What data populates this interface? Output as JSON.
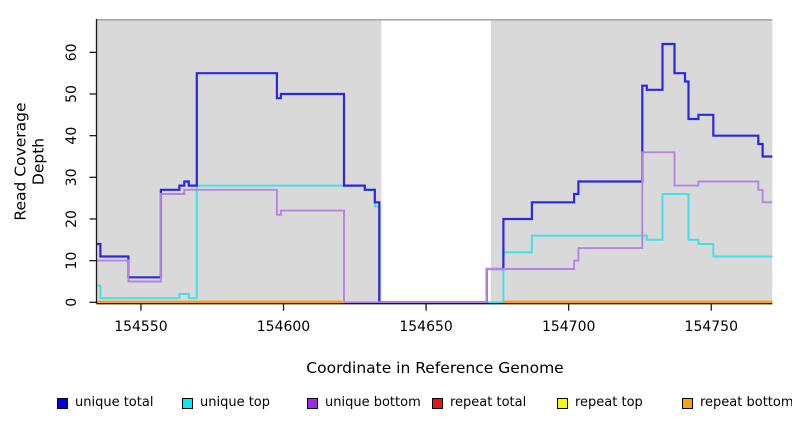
{
  "chart_data": {
    "type": "line",
    "subtype": "step-coverage-plot",
    "title": "",
    "xlabel": "Coordinate in Reference Genome",
    "ylabel": "Read Coverage Depth",
    "xlim": [
      154534.6,
      154771.4
    ],
    "ylim": [
      0,
      68
    ],
    "x_ticks": [
      154550,
      154600,
      154650,
      154700,
      154750
    ],
    "y_ticks": [
      0,
      10,
      20,
      30,
      40,
      50,
      60
    ],
    "grid": false,
    "legend_position": "bottom",
    "plot_bg_color": "#d9d9d9",
    "masked_region": {
      "from": 154634.3,
      "to": 154672.7,
      "color": "#ffffff"
    },
    "series": [
      {
        "name": "unique total",
        "color": "#2b28e0",
        "legend_color": "#0202dd",
        "steps": [
          [
            154534.6,
            14
          ],
          [
            154535.8,
            11
          ],
          [
            154545.6,
            6
          ],
          [
            154557,
            27
          ],
          [
            154563.5,
            28
          ],
          [
            154565.2,
            29
          ],
          [
            154566.8,
            28
          ],
          [
            154569.6,
            55
          ],
          [
            154597.7,
            49
          ],
          [
            154599.1,
            50
          ],
          [
            154621.2,
            28
          ],
          [
            154628.5,
            27
          ],
          [
            154632,
            24
          ],
          [
            154633.6,
            0
          ],
          [
            154671.3,
            8
          ],
          [
            154677.1,
            20
          ],
          [
            154687.1,
            24
          ],
          [
            154701.9,
            26
          ],
          [
            154703.4,
            29
          ],
          [
            154725.8,
            52
          ],
          [
            154727.4,
            51
          ],
          [
            154732.9,
            62
          ],
          [
            154737.1,
            55
          ],
          [
            154740.8,
            53
          ],
          [
            154742,
            44
          ],
          [
            154745.5,
            45
          ],
          [
            154750.7,
            40
          ],
          [
            154766.5,
            38
          ],
          [
            154768,
            35
          ]
        ]
      },
      {
        "name": "unique top",
        "color": "#45dfe8",
        "legend_color": "#00eef2",
        "steps": [
          [
            154534.6,
            4
          ],
          [
            154535.8,
            1
          ],
          [
            154563.5,
            2
          ],
          [
            154566.8,
            1
          ],
          [
            154569.6,
            28
          ],
          [
            154628.5,
            27
          ],
          [
            154632,
            23
          ],
          [
            154633.6,
            0
          ],
          [
            154677.1,
            12
          ],
          [
            154687.1,
            16
          ],
          [
            154727.4,
            15
          ],
          [
            154732.9,
            26
          ],
          [
            154742,
            15
          ],
          [
            154745.5,
            14
          ],
          [
            154750.7,
            11
          ]
        ]
      },
      {
        "name": "unique bottom",
        "color": "#b583e3",
        "legend_color": "#9d2be0",
        "steps": [
          [
            154534.6,
            10
          ],
          [
            154545.6,
            5
          ],
          [
            154557,
            26
          ],
          [
            154565.2,
            27
          ],
          [
            154597.7,
            21
          ],
          [
            154599.1,
            22
          ],
          [
            154621.2,
            0
          ],
          [
            154671.3,
            8
          ],
          [
            154701.9,
            10
          ],
          [
            154703.4,
            13
          ],
          [
            154725.8,
            36
          ],
          [
            154737.1,
            28
          ],
          [
            154745.5,
            29
          ],
          [
            154766.5,
            27
          ],
          [
            154768,
            24
          ]
        ]
      },
      {
        "name": "repeat total",
        "color": "#e04040",
        "legend_color": "#ee1111",
        "value": 0,
        "segments": [
          [
            154534.6,
            154621.2
          ],
          [
            154677.1,
            154771.4
          ]
        ]
      },
      {
        "name": "repeat top",
        "color": "#f0e800",
        "legend_color": "#f8f800",
        "value": 0,
        "segments": [
          [
            154534.6,
            154621.2
          ],
          [
            154677.1,
            154771.4
          ]
        ]
      },
      {
        "name": "repeat bottom",
        "color": "#ff9e15",
        "legend_color": "#ffa010",
        "value": 0,
        "segments": [
          [
            154534.6,
            154621.2
          ],
          [
            154677.1,
            154771.4
          ]
        ]
      }
    ]
  }
}
